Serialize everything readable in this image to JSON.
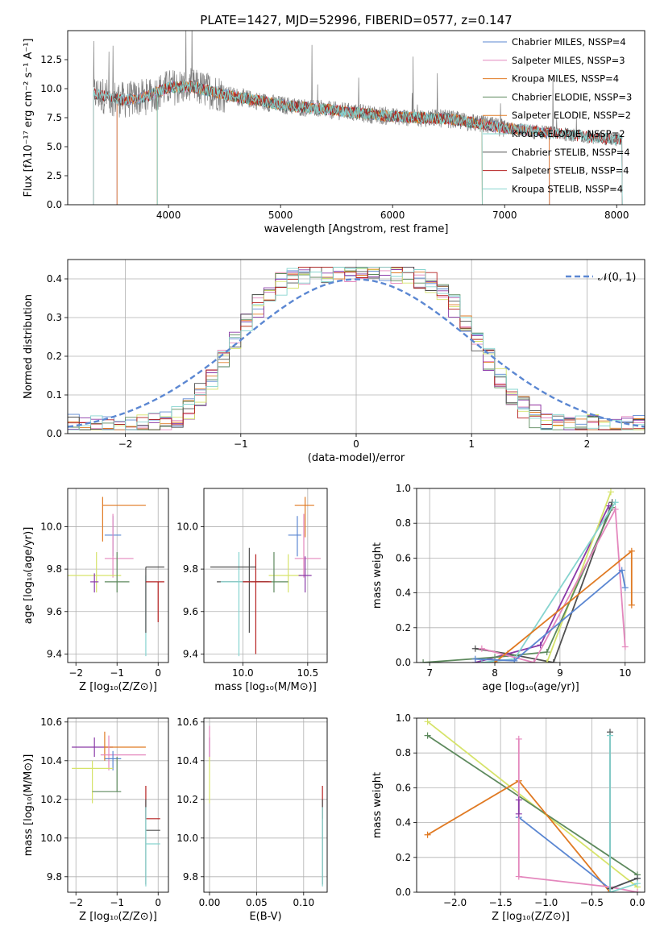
{
  "colors": {
    "c_miles": "#5b87d2",
    "s_miles": "#e487bd",
    "k_miles": "#e07a23",
    "c_elodie": "#5e8a5e",
    "s_elodie": "#e07a23",
    "k_elodie": "#86d4cf",
    "c_stelib": "#505050",
    "s_stelib": "#b52020",
    "k_stelib": "#86d4cf",
    "spectrum": "#7f7f7f",
    "gauss": "#5b87d2",
    "purple": "#8a3aa8",
    "yellow": "#d6e36a"
  },
  "chart_data": [
    {
      "id": "spectrum",
      "type": "line",
      "title": "PLATE=1427, MJD=52996, FIBERID=0577, z=0.147",
      "xlabel": "wavelength [Angstrom, rest frame]",
      "ylabel": "Flux [fλ10⁻¹⁷ erg cm⁻² s⁻¹ A⁻¹]",
      "xlim": [
        3100,
        8250
      ],
      "ylim": [
        0,
        15
      ],
      "xticks": [
        4000,
        5000,
        6000,
        7000,
        8000
      ],
      "yticks": [
        0.0,
        2.5,
        5.0,
        7.5,
        10.0,
        12.5
      ],
      "legend_position": "top-right",
      "legend": [
        "Chabrier MILES, N_SSP=4",
        "Salpeter MILES, N_SSP=3",
        "Kroupa MILES, N_SSP=4",
        "Chabrier ELODIE, N_SSP=3",
        "Salpeter ELODIE, N_SSP=2",
        "Kroupa ELODIE, N_SSP=2",
        "Chabrier STELIB, N_SSP=4",
        "Salpeter STELIB, N_SSP=4",
        "Kroupa STELIB, N_SSP=4"
      ],
      "data_range": [
        3330,
        8050
      ],
      "continuum": [
        [
          3330,
          9.6
        ],
        [
          3600,
          9.0
        ],
        [
          3800,
          9.3
        ],
        [
          4000,
          10.1
        ],
        [
          4200,
          10.2
        ],
        [
          4500,
          9.5
        ],
        [
          5000,
          8.6
        ],
        [
          5500,
          8.1
        ],
        [
          6000,
          7.6
        ],
        [
          6500,
          7.4
        ],
        [
          7000,
          6.6
        ],
        [
          7500,
          6.1
        ],
        [
          8000,
          5.6
        ]
      ]
    },
    {
      "id": "residuals",
      "type": "bar",
      "xlabel": "(data-model)/error",
      "ylabel": "Normed distribution",
      "xlim": [
        -2.5,
        2.5
      ],
      "ylim": [
        0,
        0.45
      ],
      "xticks": [
        -2,
        -1,
        0,
        1,
        2
      ],
      "yticks": [
        0.0,
        0.1,
        0.2,
        0.3,
        0.4
      ],
      "legend_position": "top-right",
      "legend": [
        "𝒩(0, 1)"
      ],
      "bin_width": 0.1
    },
    {
      "id": "age_vs_Z",
      "type": "scatter",
      "xlabel": "Z [log₁₀(Z/Z⊙)]",
      "ylabel": "age  [log₁₀(age/yr)]",
      "xlim": [
        -2.2,
        0.25
      ],
      "ylim": [
        9.36,
        10.18
      ],
      "xticks": [
        -2,
        -1,
        0
      ],
      "yticks": [
        9.4,
        9.6,
        9.8,
        10.0
      ],
      "points": [
        {
          "c": "k_miles",
          "x": -1.35,
          "y": 10.1,
          "xl": -1.35,
          "xh": -0.3,
          "yl": 9.93,
          "yh": 10.14
        },
        {
          "c": "c_miles",
          "x": -1.1,
          "y": 9.96,
          "xl": -1.3,
          "xh": -0.9,
          "yl": 9.86,
          "yh": 10.05
        },
        {
          "c": "s_miles",
          "x": -1.1,
          "y": 9.85,
          "xl": -1.3,
          "xh": -0.6,
          "yl": 9.76,
          "yh": 10.06
        },
        {
          "c": "yellow",
          "x": -1.5,
          "y": 9.77,
          "xl": -2.2,
          "xh": -0.9,
          "yl": 9.69,
          "yh": 9.88
        },
        {
          "c": "purple",
          "x": -1.55,
          "y": 9.74,
          "xl": -1.65,
          "xh": -1.45,
          "yl": 9.69,
          "yh": 9.78
        },
        {
          "c": "c_elodie",
          "x": -1.0,
          "y": 9.74,
          "xl": -1.3,
          "xh": -0.7,
          "yl": 9.69,
          "yh": 9.88
        },
        {
          "c": "k_stelib",
          "x": -0.3,
          "y": 9.69,
          "xl": -0.3,
          "xh": -0.3,
          "yl": 9.39,
          "yh": 9.77
        },
        {
          "c": "c_stelib",
          "x": -0.3,
          "y": 9.81,
          "xl": -0.3,
          "xh": 0.15,
          "yl": 9.5,
          "yh": 9.81
        },
        {
          "c": "s_stelib",
          "x": 0.0,
          "y": 9.74,
          "xl": -0.3,
          "xh": 0.15,
          "yl": 9.55,
          "yh": 9.74
        }
      ]
    },
    {
      "id": "age_vs_mass",
      "type": "scatter",
      "xlabel": "mass [log₁₀(M/M⊙)]",
      "ylabel": "",
      "xlim": [
        9.7,
        10.65
      ],
      "ylim": [
        9.36,
        10.18
      ],
      "xticks": [
        10.0,
        10.5
      ],
      "yticks": [
        9.4,
        9.6,
        9.8,
        10.0
      ],
      "points": [
        {
          "c": "k_miles",
          "x": 10.48,
          "y": 10.1,
          "xl": 10.4,
          "xh": 10.55,
          "yl": 9.95,
          "yh": 10.14
        },
        {
          "c": "c_miles",
          "x": 10.42,
          "y": 9.96,
          "xl": 10.35,
          "xh": 10.45,
          "yl": 9.86,
          "yh": 10.05
        },
        {
          "c": "s_miles",
          "x": 10.47,
          "y": 9.85,
          "xl": 10.4,
          "xh": 10.6,
          "yl": 9.76,
          "yh": 10.06
        },
        {
          "c": "yellow",
          "x": 10.35,
          "y": 9.77,
          "xl": 10.2,
          "xh": 10.45,
          "yl": 9.69,
          "yh": 9.87
        },
        {
          "c": "purple",
          "x": 10.48,
          "y": 9.77,
          "xl": 10.43,
          "xh": 10.53,
          "yl": 9.69,
          "yh": 9.86
        },
        {
          "c": "c_elodie",
          "x": 10.24,
          "y": 9.74,
          "xl": 10.1,
          "xh": 10.35,
          "yl": 9.69,
          "yh": 9.88
        },
        {
          "c": "c_stelib",
          "x": 10.05,
          "y": 9.74,
          "xl": 9.8,
          "xh": 10.2,
          "yl": 9.5,
          "yh": 9.9
        },
        {
          "c": "s_stelib",
          "x": 10.1,
          "y": 9.74,
          "xl": 10.0,
          "xh": 10.22,
          "yl": 9.4,
          "yh": 9.87
        },
        {
          "c": "k_stelib",
          "x": 9.97,
          "y": 9.74,
          "xl": 9.83,
          "xh": 10.0,
          "yl": 9.39,
          "yh": 9.88
        },
        {
          "c": "c_stelib",
          "x": 10.0,
          "y": 9.81,
          "xl": 9.75,
          "xh": 10.1,
          "yl": 9.81,
          "yh": 9.81
        }
      ]
    },
    {
      "id": "weight_vs_age",
      "type": "line",
      "xlabel": "age  [log₁₀(age/yr)]",
      "ylabel": "mass weight",
      "xlim": [
        6.8,
        10.3
      ],
      "ylim": [
        0,
        1.0
      ],
      "xticks": [
        7,
        8,
        9,
        10
      ],
      "yticks": [
        0.0,
        0.2,
        0.4,
        0.6,
        0.8,
        1.0
      ],
      "series": [
        {
          "c": "c_stelib",
          "pts": [
            [
              7.7,
              0.08
            ],
            [
              8.2,
              0.05
            ],
            [
              8.9,
              0.0
            ],
            [
              9.8,
              0.92
            ]
          ]
        },
        {
          "c": "purple",
          "pts": [
            [
              7.7,
              0.0
            ],
            [
              8.7,
              0.1
            ],
            [
              9.75,
              0.9
            ]
          ]
        },
        {
          "c": "yellow",
          "pts": [
            [
              8.8,
              0.0
            ],
            [
              9.78,
              0.98
            ]
          ]
        },
        {
          "c": "c_elodie",
          "pts": [
            [
              6.9,
              0.0
            ],
            [
              8.0,
              0.03
            ],
            [
              8.8,
              0.06
            ],
            [
              9.8,
              0.89
            ]
          ]
        },
        {
          "c": "k_stelib",
          "pts": [
            [
              7.8,
              0.0
            ],
            [
              8.3,
              0.02
            ],
            [
              9.85,
              0.92
            ]
          ]
        },
        {
          "c": "s_miles",
          "pts": [
            [
              7.8,
              0.08
            ],
            [
              8.6,
              0.0
            ],
            [
              9.85,
              0.88
            ],
            [
              10.0,
              0.09
            ]
          ]
        },
        {
          "c": "k_miles",
          "pts": [
            [
              8.0,
              0.0
            ],
            [
              10.1,
              0.64
            ],
            [
              10.1,
              0.33
            ]
          ]
        },
        {
          "c": "c_miles",
          "pts": [
            [
              7.7,
              0.02
            ],
            [
              8.3,
              0.01
            ],
            [
              9.95,
              0.53
            ],
            [
              10.0,
              0.43
            ]
          ]
        }
      ]
    },
    {
      "id": "mass_vs_Z",
      "type": "scatter",
      "xlabel": "Z [log₁₀(Z/Z⊙)]",
      "ylabel": "mass [log₁₀(M/M⊙)]",
      "xlim": [
        -2.2,
        0.25
      ],
      "ylim": [
        9.72,
        10.62
      ],
      "xticks": [
        -2,
        -1,
        0
      ],
      "yticks": [
        9.8,
        10.0,
        10.2,
        10.4,
        10.6
      ],
      "points": [
        {
          "c": "purple",
          "x": -1.55,
          "y": 10.47,
          "xl": -2.1,
          "xh": -1.1,
          "yl": 10.42,
          "yh": 10.52
        },
        {
          "c": "k_miles",
          "x": -1.3,
          "y": 10.47,
          "xl": -1.3,
          "xh": -0.3,
          "yl": 10.4,
          "yh": 10.55
        },
        {
          "c": "s_miles",
          "x": -1.2,
          "y": 10.43,
          "xl": -1.4,
          "xh": -0.3,
          "yl": 10.35,
          "yh": 10.53
        },
        {
          "c": "c_miles",
          "x": -1.1,
          "y": 10.41,
          "xl": -1.3,
          "xh": -0.9,
          "yl": 10.35,
          "yh": 10.45
        },
        {
          "c": "yellow",
          "x": -1.6,
          "y": 10.36,
          "xl": -2.1,
          "xh": -1.1,
          "yl": 10.18,
          "yh": 10.4
        },
        {
          "c": "c_elodie",
          "x": -1.0,
          "y": 10.24,
          "xl": -1.6,
          "xh": -0.9,
          "yl": 10.24,
          "yh": 10.42
        },
        {
          "c": "s_stelib",
          "x": -0.3,
          "y": 10.1,
          "xl": -0.3,
          "xh": 0.05,
          "yl": 10.1,
          "yh": 10.27
        },
        {
          "c": "c_stelib",
          "x": -0.3,
          "y": 10.04,
          "xl": -0.3,
          "xh": 0.05,
          "yl": 9.76,
          "yh": 10.2
        },
        {
          "c": "k_stelib",
          "x": -0.3,
          "y": 9.97,
          "xl": -0.3,
          "xh": 0.05,
          "yl": 9.75,
          "yh": 10.16
        }
      ]
    },
    {
      "id": "mass_vs_ebv",
      "type": "scatter",
      "xlabel": "E(B-V)",
      "ylabel": "",
      "xlim": [
        -0.006,
        0.125
      ],
      "ylim": [
        9.72,
        10.62
      ],
      "xticks": [
        0.0,
        0.05,
        0.1
      ],
      "yticks": [
        9.8,
        10.0,
        10.2,
        10.4,
        10.6
      ],
      "points": [
        {
          "c": "purple",
          "x": 0.0,
          "y": 10.47,
          "xl": 0,
          "xh": 0,
          "yl": 10.42,
          "yh": 10.52
        },
        {
          "c": "s_miles",
          "x": 0.0,
          "y": 10.5,
          "xl": 0,
          "xh": 0,
          "yl": 10.4,
          "yh": 10.58
        },
        {
          "c": "yellow",
          "x": 0.0,
          "y": 10.36,
          "xl": 0,
          "xh": 0,
          "yl": 10.18,
          "yh": 10.42
        },
        {
          "c": "s_stelib",
          "x": 0.12,
          "y": 10.1,
          "xl": 0.12,
          "xh": 0.12,
          "yl": 10.1,
          "yh": 10.27
        },
        {
          "c": "c_stelib",
          "x": 0.12,
          "y": 10.0,
          "xl": 0.12,
          "xh": 0.12,
          "yl": 9.76,
          "yh": 10.2
        },
        {
          "c": "k_stelib",
          "x": 0.12,
          "y": 9.97,
          "xl": 0.12,
          "xh": 0.12,
          "yl": 9.75,
          "yh": 10.16
        }
      ]
    },
    {
      "id": "weight_vs_Z",
      "type": "line",
      "xlabel": "Z [log₁₀(Z/Z⊙)]",
      "ylabel": "mass weight",
      "xlim": [
        -2.42,
        0.08
      ],
      "ylim": [
        0,
        1.0
      ],
      "xticks": [
        -2.0,
        -1.5,
        -1.0,
        -0.5,
        0.0
      ],
      "yticks": [
        0.0,
        0.2,
        0.4,
        0.6,
        0.8,
        1.0
      ],
      "series": [
        {
          "c": "yellow",
          "pts": [
            [
              -2.3,
              0.98
            ],
            [
              0.0,
              0.03
            ]
          ]
        },
        {
          "c": "c_elodie",
          "pts": [
            [
              -2.3,
              0.9
            ],
            [
              0.0,
              0.1
            ]
          ]
        },
        {
          "c": "k_miles",
          "pts": [
            [
              -2.3,
              0.33
            ],
            [
              -1.3,
              0.64
            ],
            [
              -0.3,
              0.0
            ]
          ]
        },
        {
          "c": "c_miles",
          "pts": [
            [
              -1.3,
              0.43
            ],
            [
              -0.3,
              0.02
            ],
            [
              0.0,
              0.08
            ]
          ]
        },
        {
          "c": "s_miles",
          "pts": [
            [
              -1.3,
              0.88
            ],
            [
              -1.3,
              0.09
            ],
            [
              -0.3,
              0.03
            ],
            [
              0.0,
              0.0
            ]
          ]
        },
        {
          "c": "c_stelib",
          "pts": [
            [
              -0.3,
              0.92
            ],
            [
              -0.3,
              0.02
            ],
            [
              0.0,
              0.08
            ]
          ]
        },
        {
          "c": "k_stelib",
          "pts": [
            [
              -0.3,
              0.9
            ],
            [
              -0.3,
              0.0
            ],
            [
              0.0,
              0.05
            ]
          ]
        },
        {
          "c": "purple",
          "pts": [
            [
              -1.3,
              0.53
            ],
            [
              -1.3,
              0.45
            ]
          ]
        }
      ]
    }
  ]
}
